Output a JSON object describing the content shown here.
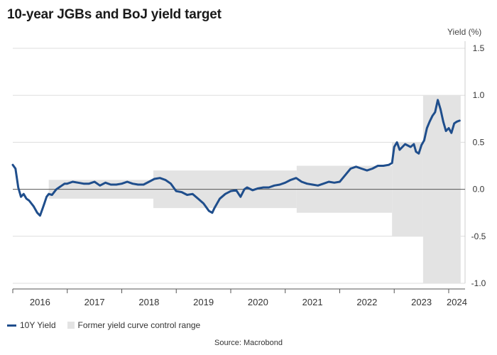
{
  "chart_data": {
    "type": "line",
    "title": "10-year JGBs and BoJ yield target",
    "ylabel": "Yield (%)",
    "xlabel": "",
    "source": "Source: Macrobond",
    "ylim": [
      -1.0,
      1.5
    ],
    "yticks": [
      1.5,
      1.0,
      0.5,
      0.0,
      -0.5,
      -1.0
    ],
    "ytick_labels": [
      "1.5",
      "1.0",
      "0.5",
      "0.0",
      "-0.5",
      "-1.0"
    ],
    "xlim": [
      2016.0,
      2024.3
    ],
    "x_tick_labels": [
      "2016",
      "2017",
      "2018",
      "2019",
      "2020",
      "2021",
      "2022",
      "2023",
      "2024"
    ],
    "grid": "horizontal",
    "legend": "bottom-left",
    "colors": {
      "line": "#1f4e8c",
      "band": "#e3e3e3",
      "zero": "#555555",
      "grid": "#dddddd"
    },
    "series": [
      {
        "name": "10Y Yield",
        "x": [
          2016.0,
          2016.05,
          2016.1,
          2016.15,
          2016.2,
          2016.25,
          2016.3,
          2016.38,
          2016.45,
          2016.5,
          2016.55,
          2016.58,
          2016.62,
          2016.66,
          2016.72,
          2016.76,
          2016.8,
          2016.85,
          2016.9,
          2016.95,
          2017.0,
          2017.1,
          2017.2,
          2017.3,
          2017.4,
          2017.5,
          2017.6,
          2017.7,
          2017.8,
          2017.9,
          2018.0,
          2018.1,
          2018.2,
          2018.3,
          2018.4,
          2018.5,
          2018.6,
          2018.7,
          2018.8,
          2018.9,
          2019.0,
          2019.1,
          2019.2,
          2019.3,
          2019.4,
          2019.5,
          2019.6,
          2019.66,
          2019.7,
          2019.8,
          2019.9,
          2020.0,
          2020.1,
          2020.18,
          2020.25,
          2020.3,
          2020.4,
          2020.5,
          2020.6,
          2020.7,
          2020.8,
          2020.9,
          2021.0,
          2021.1,
          2021.2,
          2021.3,
          2021.4,
          2021.5,
          2021.6,
          2021.7,
          2021.8,
          2021.9,
          2022.0,
          2022.1,
          2022.2,
          2022.3,
          2022.4,
          2022.5,
          2022.6,
          2022.7,
          2022.8,
          2022.9,
          2022.96,
          2023.0,
          2023.05,
          2023.1,
          2023.2,
          2023.3,
          2023.36,
          2023.4,
          2023.45,
          2023.5,
          2023.55,
          2023.6,
          2023.65,
          2023.7,
          2023.75,
          2023.8,
          2023.85,
          2023.9,
          2023.95,
          2024.0,
          2024.05,
          2024.1,
          2024.15,
          2024.2
        ],
        "y": [
          0.26,
          0.22,
          0.02,
          -0.08,
          -0.05,
          -0.1,
          -0.12,
          -0.18,
          -0.25,
          -0.28,
          -0.2,
          -0.15,
          -0.08,
          -0.05,
          -0.06,
          -0.03,
          0.0,
          0.02,
          0.04,
          0.06,
          0.06,
          0.08,
          0.07,
          0.06,
          0.06,
          0.08,
          0.04,
          0.07,
          0.05,
          0.05,
          0.06,
          0.08,
          0.06,
          0.05,
          0.05,
          0.08,
          0.11,
          0.12,
          0.1,
          0.06,
          -0.02,
          -0.03,
          -0.06,
          -0.05,
          -0.1,
          -0.15,
          -0.23,
          -0.25,
          -0.2,
          -0.1,
          -0.05,
          -0.02,
          -0.01,
          -0.08,
          0.0,
          0.02,
          -0.01,
          0.01,
          0.02,
          0.02,
          0.04,
          0.05,
          0.07,
          0.1,
          0.12,
          0.08,
          0.06,
          0.05,
          0.04,
          0.06,
          0.08,
          0.07,
          0.08,
          0.15,
          0.22,
          0.24,
          0.22,
          0.2,
          0.22,
          0.25,
          0.25,
          0.26,
          0.28,
          0.45,
          0.5,
          0.42,
          0.48,
          0.45,
          0.48,
          0.4,
          0.38,
          0.47,
          0.52,
          0.65,
          0.72,
          0.78,
          0.82,
          0.95,
          0.85,
          0.72,
          0.62,
          0.65,
          0.6,
          0.7,
          0.72,
          0.73
        ]
      }
    ],
    "bands": {
      "name": "Former yield curve control range",
      "segments": [
        {
          "x0": 2016.66,
          "x1": 2018.58,
          "low": -0.1,
          "high": 0.1
        },
        {
          "x0": 2018.58,
          "x1": 2021.21,
          "low": -0.2,
          "high": 0.2
        },
        {
          "x0": 2021.21,
          "x1": 2022.96,
          "low": -0.25,
          "high": 0.25
        },
        {
          "x0": 2022.96,
          "x1": 2023.53,
          "low": -0.5,
          "high": 0.5
        },
        {
          "x0": 2023.53,
          "x1": 2024.22,
          "low": -1.0,
          "high": 1.0
        }
      ]
    }
  }
}
